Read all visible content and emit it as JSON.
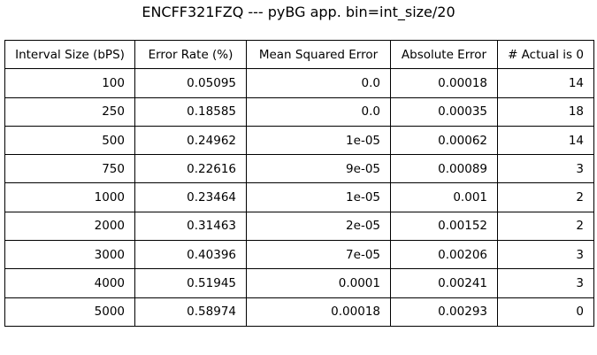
{
  "chart_data": {
    "type": "table",
    "title": "ENCFF321FZQ --- pyBG app. bin=int_size/20",
    "columns": [
      "Interval Size (bPS)",
      "Error Rate (%)",
      "Mean Squared Error",
      "Absolute Error",
      "# Actual is 0"
    ],
    "rows": [
      [
        "100",
        "0.05095",
        "0.0",
        "0.00018",
        "14"
      ],
      [
        "250",
        "0.18585",
        "0.0",
        "0.00035",
        "18"
      ],
      [
        "500",
        "0.24962",
        "1e-05",
        "0.00062",
        "14"
      ],
      [
        "750",
        "0.22616",
        "9e-05",
        "0.00089",
        "3"
      ],
      [
        "1000",
        "0.23464",
        "1e-05",
        "0.001",
        "2"
      ],
      [
        "2000",
        "0.31463",
        "2e-05",
        "0.00152",
        "2"
      ],
      [
        "3000",
        "0.40396",
        "7e-05",
        "0.00206",
        "3"
      ],
      [
        "4000",
        "0.51945",
        "0.0001",
        "0.00241",
        "3"
      ],
      [
        "5000",
        "0.58974",
        "0.00018",
        "0.00293",
        "0"
      ]
    ]
  }
}
